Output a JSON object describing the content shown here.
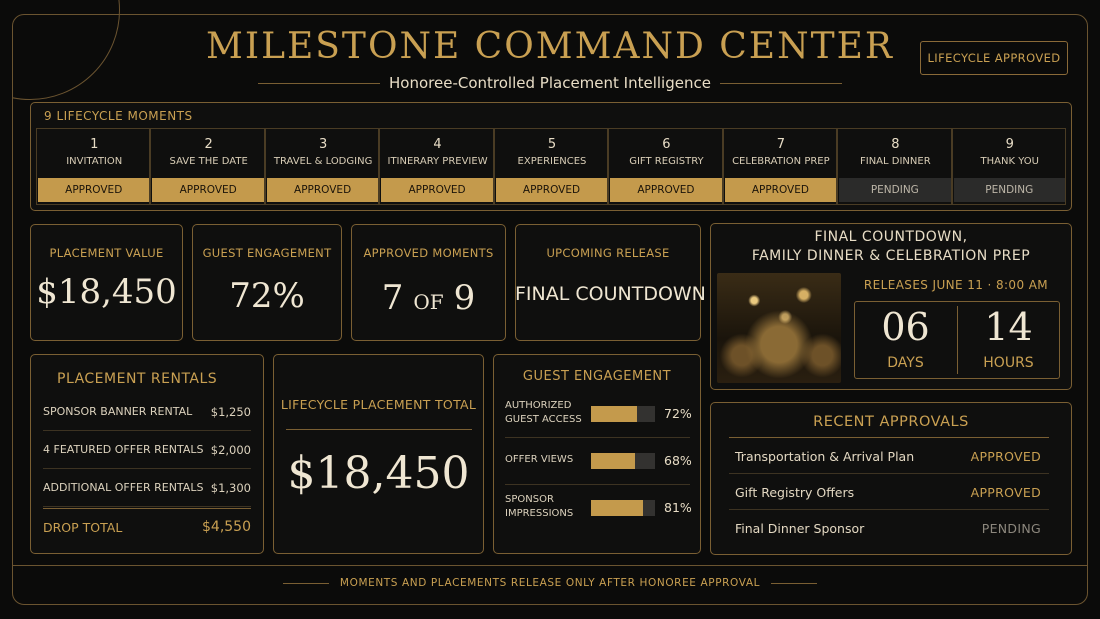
{
  "header": {
    "title": "MILESTONE COMMAND CENTER",
    "subtitle": "Honoree-Controlled Placement Intelligence",
    "badge": "LIFECYCLE APPROVED"
  },
  "moments": {
    "title": "9 LIFECYCLE MOMENTS",
    "items": [
      {
        "number": "1",
        "name": "INVITATION",
        "status": "APPROVED"
      },
      {
        "number": "2",
        "name": "SAVE THE DATE",
        "status": "APPROVED"
      },
      {
        "number": "3",
        "name": "TRAVEL & LODGING",
        "status": "APPROVED"
      },
      {
        "number": "4",
        "name": "ITINERARY PREVIEW",
        "status": "APPROVED"
      },
      {
        "number": "5",
        "name": "EXPERIENCES",
        "status": "APPROVED"
      },
      {
        "number": "6",
        "name": "GIFT REGISTRY",
        "status": "APPROVED"
      },
      {
        "number": "7",
        "name": "CELEBRATION PREP",
        "status": "APPROVED"
      },
      {
        "number": "8",
        "name": "FINAL DINNER",
        "status": "PENDING"
      },
      {
        "number": "9",
        "name": "THANK YOU",
        "status": "PENDING"
      }
    ]
  },
  "placement_value": {
    "label": "PLACEMENT VALUE",
    "value": "$18,450"
  },
  "guest_engagement": {
    "label": "GUEST ENGAGEMENT",
    "value": "72%"
  },
  "approved_moments": {
    "label": "APPROVED MOMENTS",
    "approved": "7",
    "of": "OF",
    "total": "9"
  },
  "upcoming_release": {
    "label": "UPCOMING RELEASE",
    "value": "FINAL COUNTDOWN"
  },
  "countdown": {
    "title_lines": [
      "FINAL COUNTDOWN,",
      "FAMILY DINNER & CELEBRATION PREP"
    ],
    "release": "RELEASES JUNE 11 · 8:00 AM",
    "days": "06",
    "days_label": "DAYS",
    "hours": "14",
    "hours_label": "HOURS"
  },
  "rentals": {
    "title": "PLACEMENT RENTALS",
    "rows": [
      {
        "label": "SPONSOR BANNER RENTAL",
        "amount": "$1,250"
      },
      {
        "label": "4 FEATURED OFFER RENTALS",
        "amount": "$2,000"
      },
      {
        "label": "ADDITIONAL OFFER RENTALS",
        "amount": "$1,300"
      }
    ],
    "total_label": "DROP TOTAL",
    "total": "$4,550"
  },
  "lifecycle_total": {
    "label": "LIFECYCLE PLACEMENT TOTAL",
    "value": "$18,450"
  },
  "engagement": {
    "title": "GUEST ENGAGEMENT",
    "rows": [
      {
        "label_lines": [
          "AUTHORIZED",
          "GUEST ACCESS"
        ],
        "value": 72,
        "value_label": "72%"
      },
      {
        "label_lines": [
          "OFFER VIEWS"
        ],
        "value": 68,
        "value_label": "68%"
      },
      {
        "label_lines": [
          "SPONSOR",
          "IMPRESSIONS"
        ],
        "value": 81,
        "value_label": "81%"
      }
    ]
  },
  "approvals": {
    "title": "RECENT APPROVALS",
    "rows": [
      {
        "item": "Transportation & Arrival Plan",
        "status": "APPROVED"
      },
      {
        "item": "Gift Registry Offers",
        "status": "APPROVED"
      },
      {
        "item": "Final Dinner Sponsor",
        "status": "PENDING"
      }
    ]
  },
  "footer": "MOMENTS AND PLACEMENTS RELEASE ONLY AFTER HONOREE APPROVAL"
}
